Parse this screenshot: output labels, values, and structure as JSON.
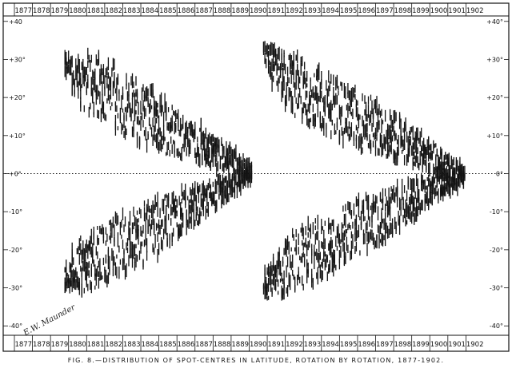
{
  "chart_data": {
    "type": "scatter",
    "title": "FIG. 8.—DISTRIBUTION OF SPOT-CENTRES IN LATITUDE, ROTATION BY ROTATION, 1877-1902.",
    "xlabel": "",
    "ylabel": "",
    "xlim": [
      1876.5,
      1902.9
    ],
    "ylim": [
      -41,
      41
    ],
    "x_ticks": [
      "1877",
      "1878",
      "1879",
      "1880",
      "1881",
      "1882",
      "1883",
      "1884",
      "1885",
      "1886",
      "1887",
      "1888",
      "1889",
      "1890",
      "1891",
      "1892",
      "1893",
      "1894",
      "1895",
      "1896",
      "1897",
      "1898",
      "1899",
      "1900",
      "1901",
      "1902"
    ],
    "y_ticks_left": [
      "+40",
      "+30°",
      "+20°",
      "+10°",
      "+0°",
      "-10°",
      "-20°",
      "-30°",
      "-40°"
    ],
    "y_ticks_right": [
      "+40°",
      "+30°",
      "+20°",
      "+10°",
      "0°",
      "-10°",
      "-20°",
      "-30°",
      "-40°"
    ],
    "y_tick_values": [
      40,
      30,
      20,
      10,
      0,
      -10,
      -20,
      -30,
      -40
    ],
    "equator_line": "dotted",
    "signature": "E.W. Maunder",
    "series": [
      {
        "x": [
          1879.3,
          1879.7,
          1880.1,
          1880.5,
          1880.9,
          1881.3,
          1881.7,
          1882.1,
          1882.5,
          1882.9,
          1883.3,
          1883.7,
          1884.1,
          1884.5,
          1884.9,
          1885.3,
          1885.7,
          1886.1,
          1886.5,
          1886.9,
          1887.3,
          1887.7,
          1888.1,
          1888.5,
          1888.9,
          1889.3
        ],
        "y_center": [
          28,
          26,
          24,
          24,
          23,
          22,
          21,
          19,
          18,
          17,
          16,
          15,
          14,
          13,
          12,
          11,
          10,
          9,
          8,
          7,
          6,
          5,
          4,
          3,
          2,
          1
        ],
        "y_spread": [
          3,
          5,
          7,
          8,
          8,
          8,
          8,
          8,
          8,
          8,
          8,
          8,
          8,
          7,
          7,
          6,
          6,
          5,
          5,
          4,
          4,
          4,
          3,
          3,
          2,
          2
        ]
      },
      {
        "x": [
          1879.3,
          1879.7,
          1880.1,
          1880.5,
          1880.9,
          1881.3,
          1881.7,
          1882.1,
          1882.5,
          1882.9,
          1883.3,
          1883.7,
          1884.1,
          1884.5,
          1884.9,
          1885.3,
          1885.7,
          1886.1,
          1886.5,
          1886.9,
          1887.3,
          1887.7,
          1888.1,
          1888.5,
          1888.9,
          1889.3
        ],
        "y_center": [
          -27,
          -25,
          -24,
          -23,
          -22,
          -21,
          -20,
          -19,
          -18,
          -17,
          -16,
          -15,
          -14,
          -13,
          -12,
          -11,
          -10,
          -9,
          -8,
          -7,
          -6,
          -5,
          -4,
          -3,
          -2,
          -1
        ],
        "y_spread": [
          3,
          5,
          7,
          8,
          8,
          8,
          8,
          8,
          8,
          8,
          8,
          8,
          8,
          7,
          7,
          6,
          6,
          5,
          5,
          4,
          4,
          4,
          3,
          3,
          2,
          2
        ]
      },
      {
        "x": [
          1890.3,
          1890.7,
          1891.1,
          1891.5,
          1891.9,
          1892.3,
          1892.7,
          1893.1,
          1893.5,
          1893.9,
          1894.3,
          1894.7,
          1895.1,
          1895.5,
          1895.9,
          1896.3,
          1896.7,
          1897.1,
          1897.5,
          1897.9,
          1898.3,
          1898.7,
          1899.1,
          1899.5,
          1899.9,
          1900.3,
          1900.7,
          1901.1
        ],
        "y_center": [
          30,
          28,
          26,
          24,
          23,
          22,
          21,
          20,
          19,
          18,
          17,
          16,
          15,
          14,
          13,
          12,
          11,
          10,
          9,
          8,
          7,
          6,
          5,
          4,
          3,
          2,
          2,
          1
        ],
        "y_spread": [
          4,
          5,
          6,
          7,
          8,
          8,
          8,
          8,
          8,
          8,
          8,
          8,
          8,
          8,
          7,
          7,
          7,
          6,
          6,
          5,
          5,
          5,
          4,
          4,
          3,
          3,
          2,
          2
        ]
      },
      {
        "x": [
          1890.3,
          1890.7,
          1891.1,
          1891.5,
          1891.9,
          1892.3,
          1892.7,
          1893.1,
          1893.5,
          1893.9,
          1894.3,
          1894.7,
          1895.1,
          1895.5,
          1895.9,
          1896.3,
          1896.7,
          1897.1,
          1897.5,
          1897.9,
          1898.3,
          1898.7,
          1899.1,
          1899.5,
          1899.9,
          1900.3,
          1900.7,
          1901.1
        ],
        "y_center": [
          -29,
          -27,
          -26,
          -24,
          -23,
          -22,
          -21,
          -20,
          -19,
          -18,
          -17,
          -16,
          -15,
          -14,
          -13,
          -12,
          -11,
          -10,
          -9,
          -8,
          -7,
          -6,
          -5,
          -4,
          -3,
          -2,
          -2,
          -1
        ],
        "y_spread": [
          4,
          5,
          6,
          7,
          8,
          8,
          8,
          8,
          8,
          8,
          8,
          8,
          8,
          8,
          7,
          7,
          7,
          6,
          6,
          5,
          5,
          5,
          4,
          4,
          3,
          3,
          2,
          2
        ]
      }
    ]
  }
}
